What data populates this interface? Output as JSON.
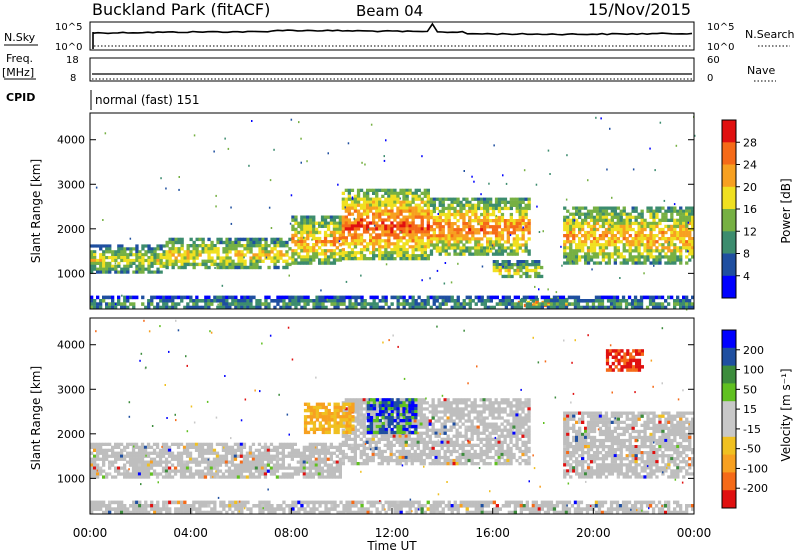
{
  "header": {
    "station": "Buckland Park (fitACF)",
    "beam": "Beam 04",
    "date": "15/Nov/2015"
  },
  "top_panels": {
    "nsky_label": "N.Sky",
    "nsky_ticks": [
      "10^5",
      "10^0"
    ],
    "nsearch_label": "N.Search",
    "nsearch_ticks": [
      "10^5",
      "10^0"
    ],
    "freq_label_1": "Freq.",
    "freq_label_2": "[MHz]",
    "freq_ticks": [
      "18",
      "8"
    ],
    "nave_label": "Nave",
    "nave_ticks": [
      "60",
      "0"
    ],
    "cpid_label": "CPID",
    "cpid_value": "normal (fast) 151"
  },
  "colors": {
    "power_scale": [
      "#0000ff",
      "#1f4fa0",
      "#3c8c6e",
      "#76b043",
      "#f0e020",
      "#f7a020",
      "#f56a18",
      "#e01010"
    ],
    "velocity_scale": [
      "#e01010",
      "#f56a18",
      "#f7a020",
      "#f0c020",
      "#c8c8c8",
      "#c8c8c8",
      "#60c020",
      "#3c8c3c",
      "#1f4fa0",
      "#0000ff"
    ],
    "ground_scatter": "#bebebe"
  },
  "chart_data": [
    {
      "type": "heatmap",
      "panel": "power",
      "xlabel": "",
      "ylabel": "Slant Range [km]",
      "x_range_hours": [
        0,
        24
      ],
      "ylim": [
        200,
        4600
      ],
      "yticks": [
        "1000",
        "2000",
        "3000",
        "4000"
      ],
      "colorbar_label": "Power [dB]",
      "colorbar_ticks": [
        "4",
        "8",
        "12",
        "16",
        "20",
        "24",
        "28"
      ],
      "bands": [
        {
          "from_h": 0.0,
          "to_h": 3.0,
          "lo_km": 1000,
          "hi_km": 1650,
          "level": 0.55
        },
        {
          "from_h": 3.0,
          "to_h": 8.0,
          "lo_km": 1100,
          "hi_km": 1800,
          "level": 0.62
        },
        {
          "from_h": 8.0,
          "to_h": 10.0,
          "lo_km": 1200,
          "hi_km": 2300,
          "level": 0.72
        },
        {
          "from_h": 10.0,
          "to_h": 13.5,
          "lo_km": 1300,
          "hi_km": 2900,
          "level": 0.85
        },
        {
          "from_h": 13.5,
          "to_h": 17.5,
          "lo_km": 1400,
          "hi_km": 2700,
          "level": 0.78
        },
        {
          "from_h": 16.0,
          "to_h": 18.0,
          "lo_km": 900,
          "hi_km": 1300,
          "level": 0.55
        },
        {
          "from_h": 17.0,
          "to_h": 19.0,
          "lo_km": 250,
          "hi_km": 450,
          "level": 0.85
        },
        {
          "from_h": 18.8,
          "to_h": 24.0,
          "lo_km": 1200,
          "hi_km": 2500,
          "level": 0.7
        },
        {
          "from_h": 0.0,
          "to_h": 24.0,
          "lo_km": 200,
          "hi_km": 500,
          "level": 0.35
        }
      ]
    },
    {
      "type": "heatmap",
      "panel": "velocity",
      "xlabel": "Time UT",
      "ylabel": "Slant Range [km]",
      "x_range_hours": [
        0,
        24
      ],
      "ylim": [
        200,
        4600
      ],
      "yticks": [
        "1000",
        "2000",
        "3000",
        "4000"
      ],
      "xticks": [
        "00:00",
        "04:00",
        "08:00",
        "12:00",
        "16:00",
        "20:00",
        "00:00"
      ],
      "colorbar_label": "Velocity [m s⁻¹]",
      "colorbar_ticks": [
        "-200",
        "-100",
        "-50",
        "-15",
        "15",
        "50",
        "100",
        "200"
      ],
      "bands": [
        {
          "from_h": 0.0,
          "to_h": 10.0,
          "lo_km": 1000,
          "hi_km": 1800,
          "kind": "gs"
        },
        {
          "from_h": 10.0,
          "to_h": 17.5,
          "lo_km": 1300,
          "hi_km": 2800,
          "kind": "gs"
        },
        {
          "from_h": 18.8,
          "to_h": 24.0,
          "lo_km": 1000,
          "hi_km": 2500,
          "kind": "gs"
        },
        {
          "from_h": 8.5,
          "to_h": 10.5,
          "lo_km": 2000,
          "hi_km": 2700,
          "kind": "neg"
        },
        {
          "from_h": 11.0,
          "to_h": 13.0,
          "lo_km": 2000,
          "hi_km": 2800,
          "kind": "pos"
        },
        {
          "from_h": 20.5,
          "to_h": 22.0,
          "lo_km": 3400,
          "hi_km": 3900,
          "kind": "neg_strong"
        },
        {
          "from_h": 0.0,
          "to_h": 24.0,
          "lo_km": 200,
          "hi_km": 500,
          "kind": "gs"
        }
      ]
    }
  ]
}
